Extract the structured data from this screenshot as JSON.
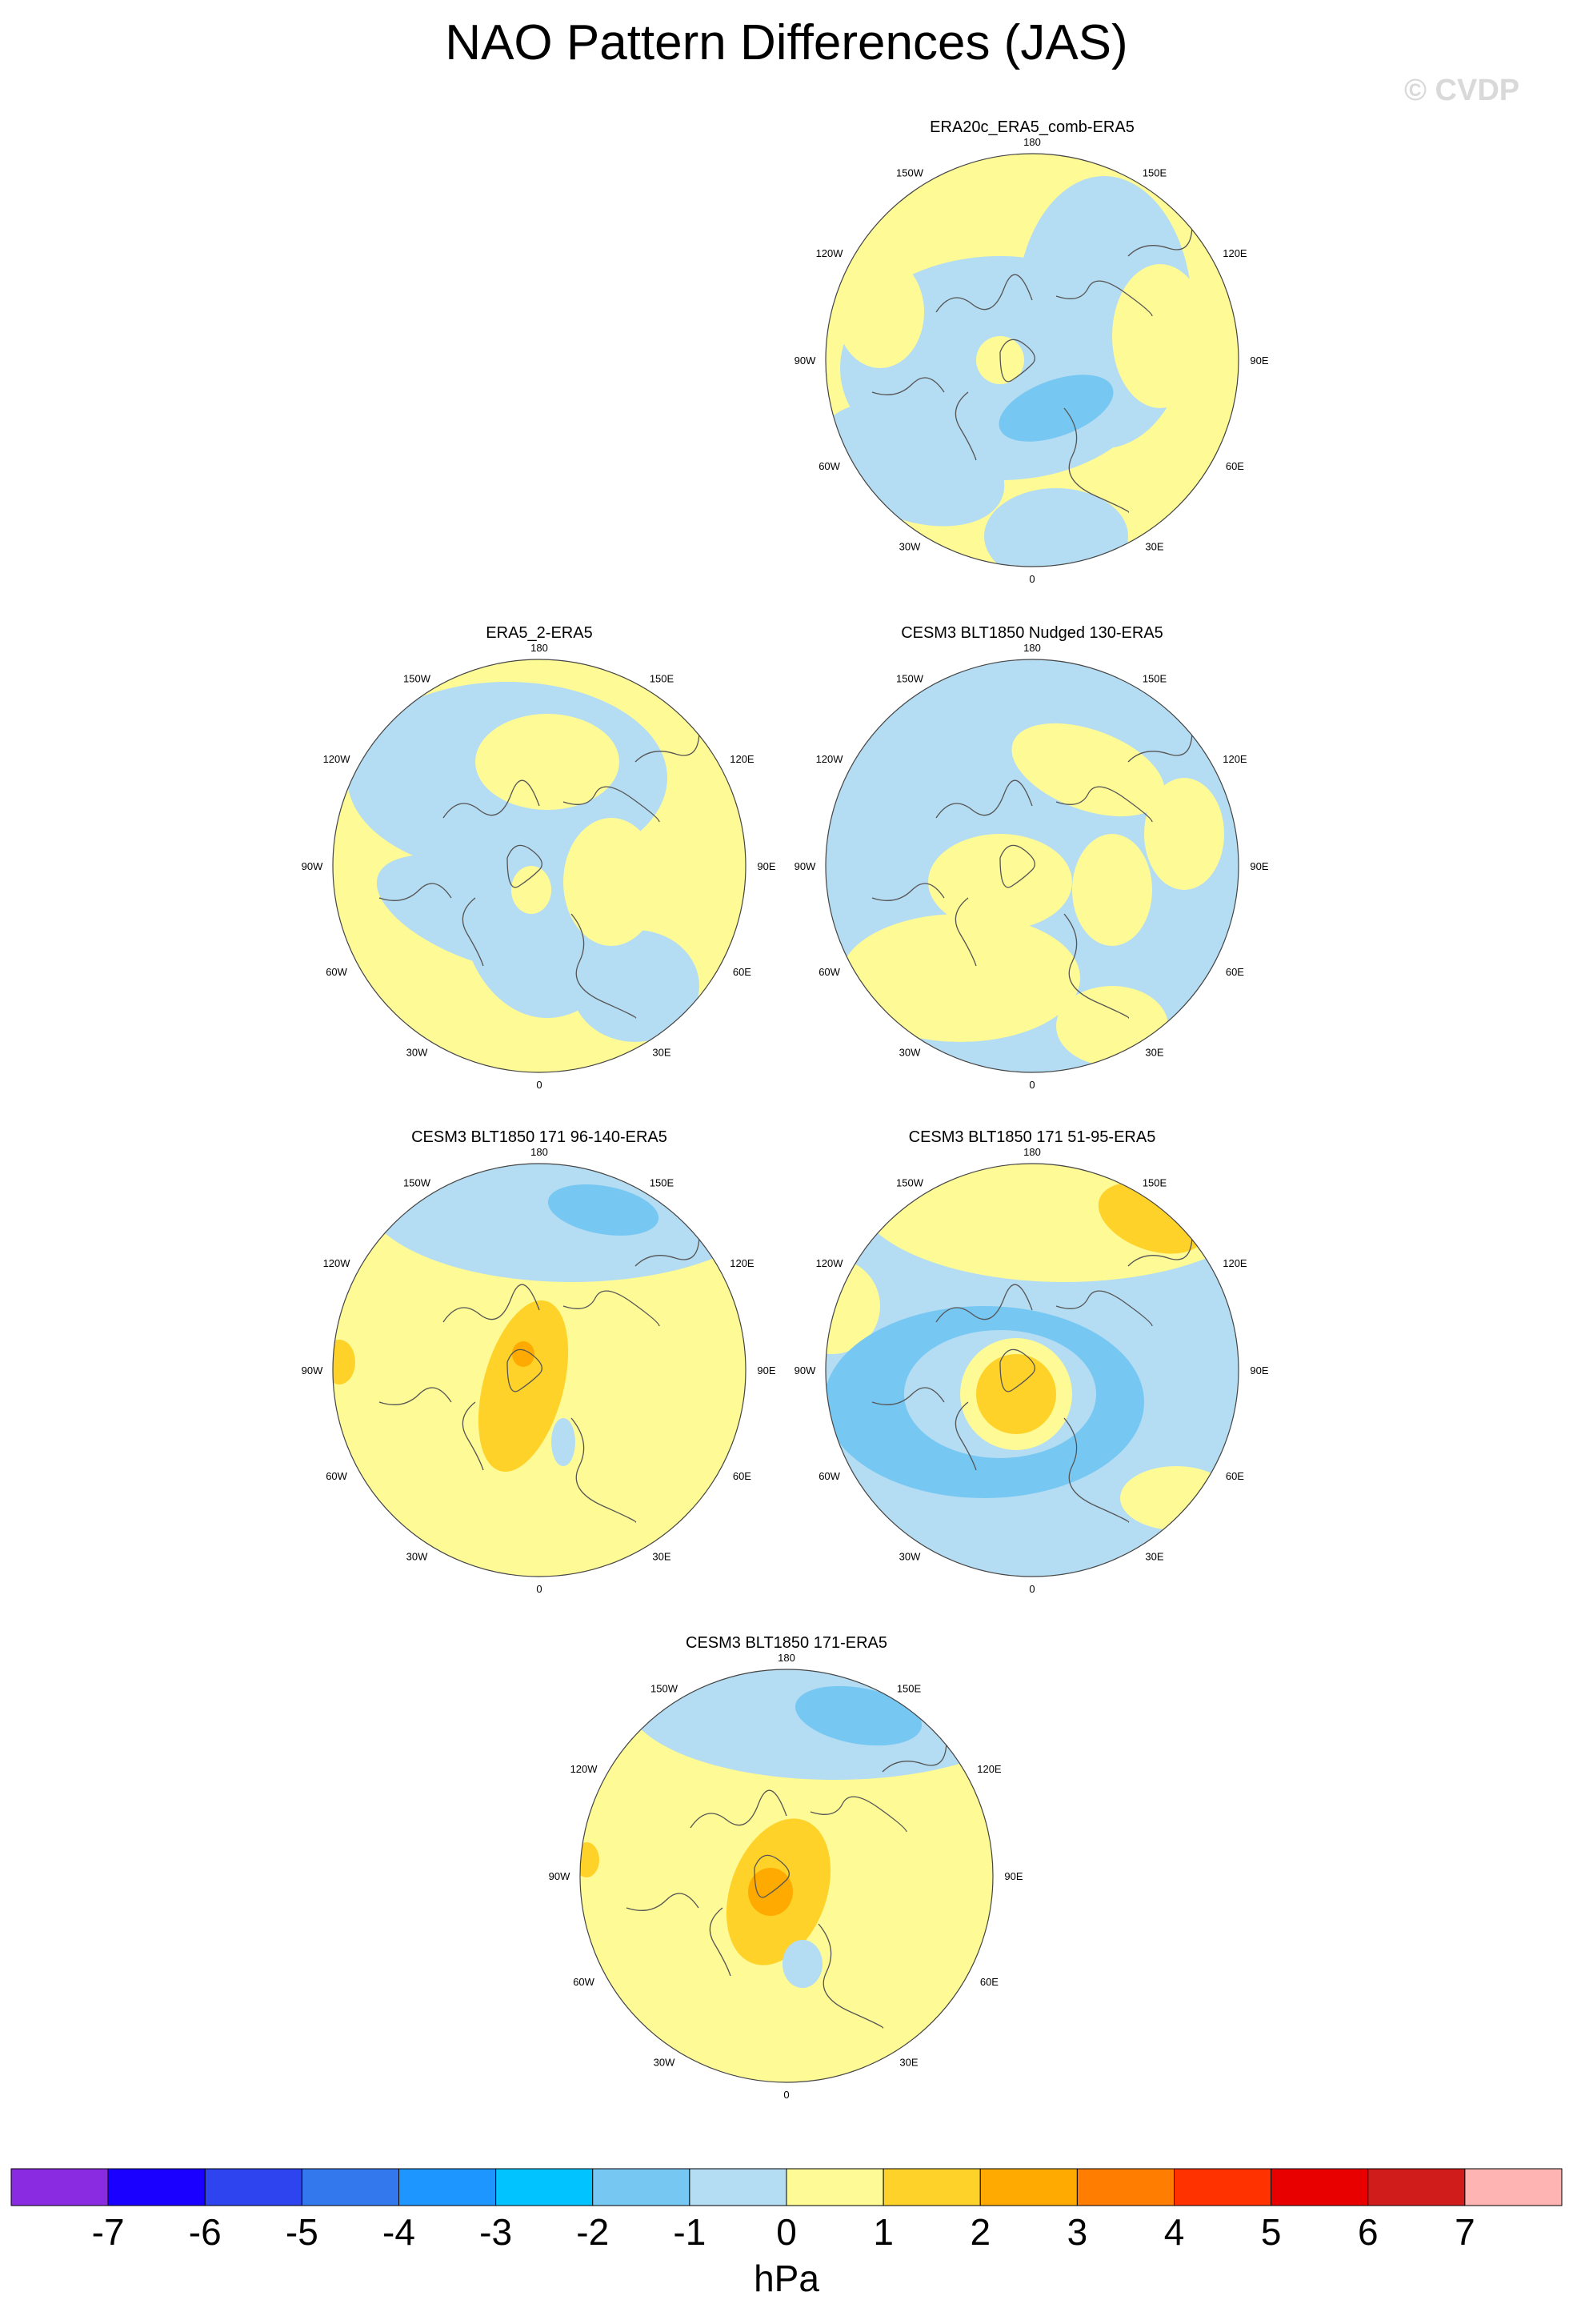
{
  "figure": {
    "title": "NAO Pattern Differences (JAS)",
    "watermark": "© CVDP"
  },
  "lon_labels": {
    "top": "180",
    "bottom": "0",
    "left": "90W",
    "right": "90E",
    "upper_left": "150W",
    "upper_right": "150E",
    "mid_upper_left": "120W",
    "mid_upper_right": "120E",
    "mid_lower_left": "60W",
    "mid_lower_right": "60E",
    "lower_left": "30W",
    "lower_right": "30E"
  },
  "panels": [
    {
      "title": "ERA20c_ERA5_comb-ERA5",
      "pattern": "p0"
    },
    {
      "title": "ERA5_2-ERA5",
      "pattern": "p1"
    },
    {
      "title": "CESM3 BLT1850 Nudged 130-ERA5",
      "pattern": "p2"
    },
    {
      "title": "CESM3 BLT1850 171 96-140-ERA5",
      "pattern": "p3"
    },
    {
      "title": "CESM3 BLT1850 171 51-95-ERA5",
      "pattern": "p4"
    },
    {
      "title": "CESM3 BLT1850 171-ERA5",
      "pattern": "p5"
    }
  ],
  "colorbar": {
    "unit": "hPa",
    "levels": [
      "-7",
      "-6",
      "-5",
      "-4",
      "-3",
      "-2",
      "-1",
      "0",
      "1",
      "2",
      "3",
      "4",
      "5",
      "6",
      "7"
    ],
    "colors": [
      "#8a2be2",
      "#1a00ff",
      "#2e44ee",
      "#3478ee",
      "#1e96ff",
      "#00c3ff",
      "#76c8f3",
      "#b4dcf2",
      "#fefa96",
      "#ffd22a",
      "#ffaa00",
      "#ff7d00",
      "#ff3200",
      "#e80000",
      "#d11c1c",
      "#ffb4b4"
    ]
  },
  "colors": {
    "neg1": "#b4dcf2",
    "neg2": "#76c8f3",
    "pos1": "#fefa96",
    "pos2": "#ffd22a",
    "pos3": "#ffaa00",
    "coast": "#555555"
  }
}
